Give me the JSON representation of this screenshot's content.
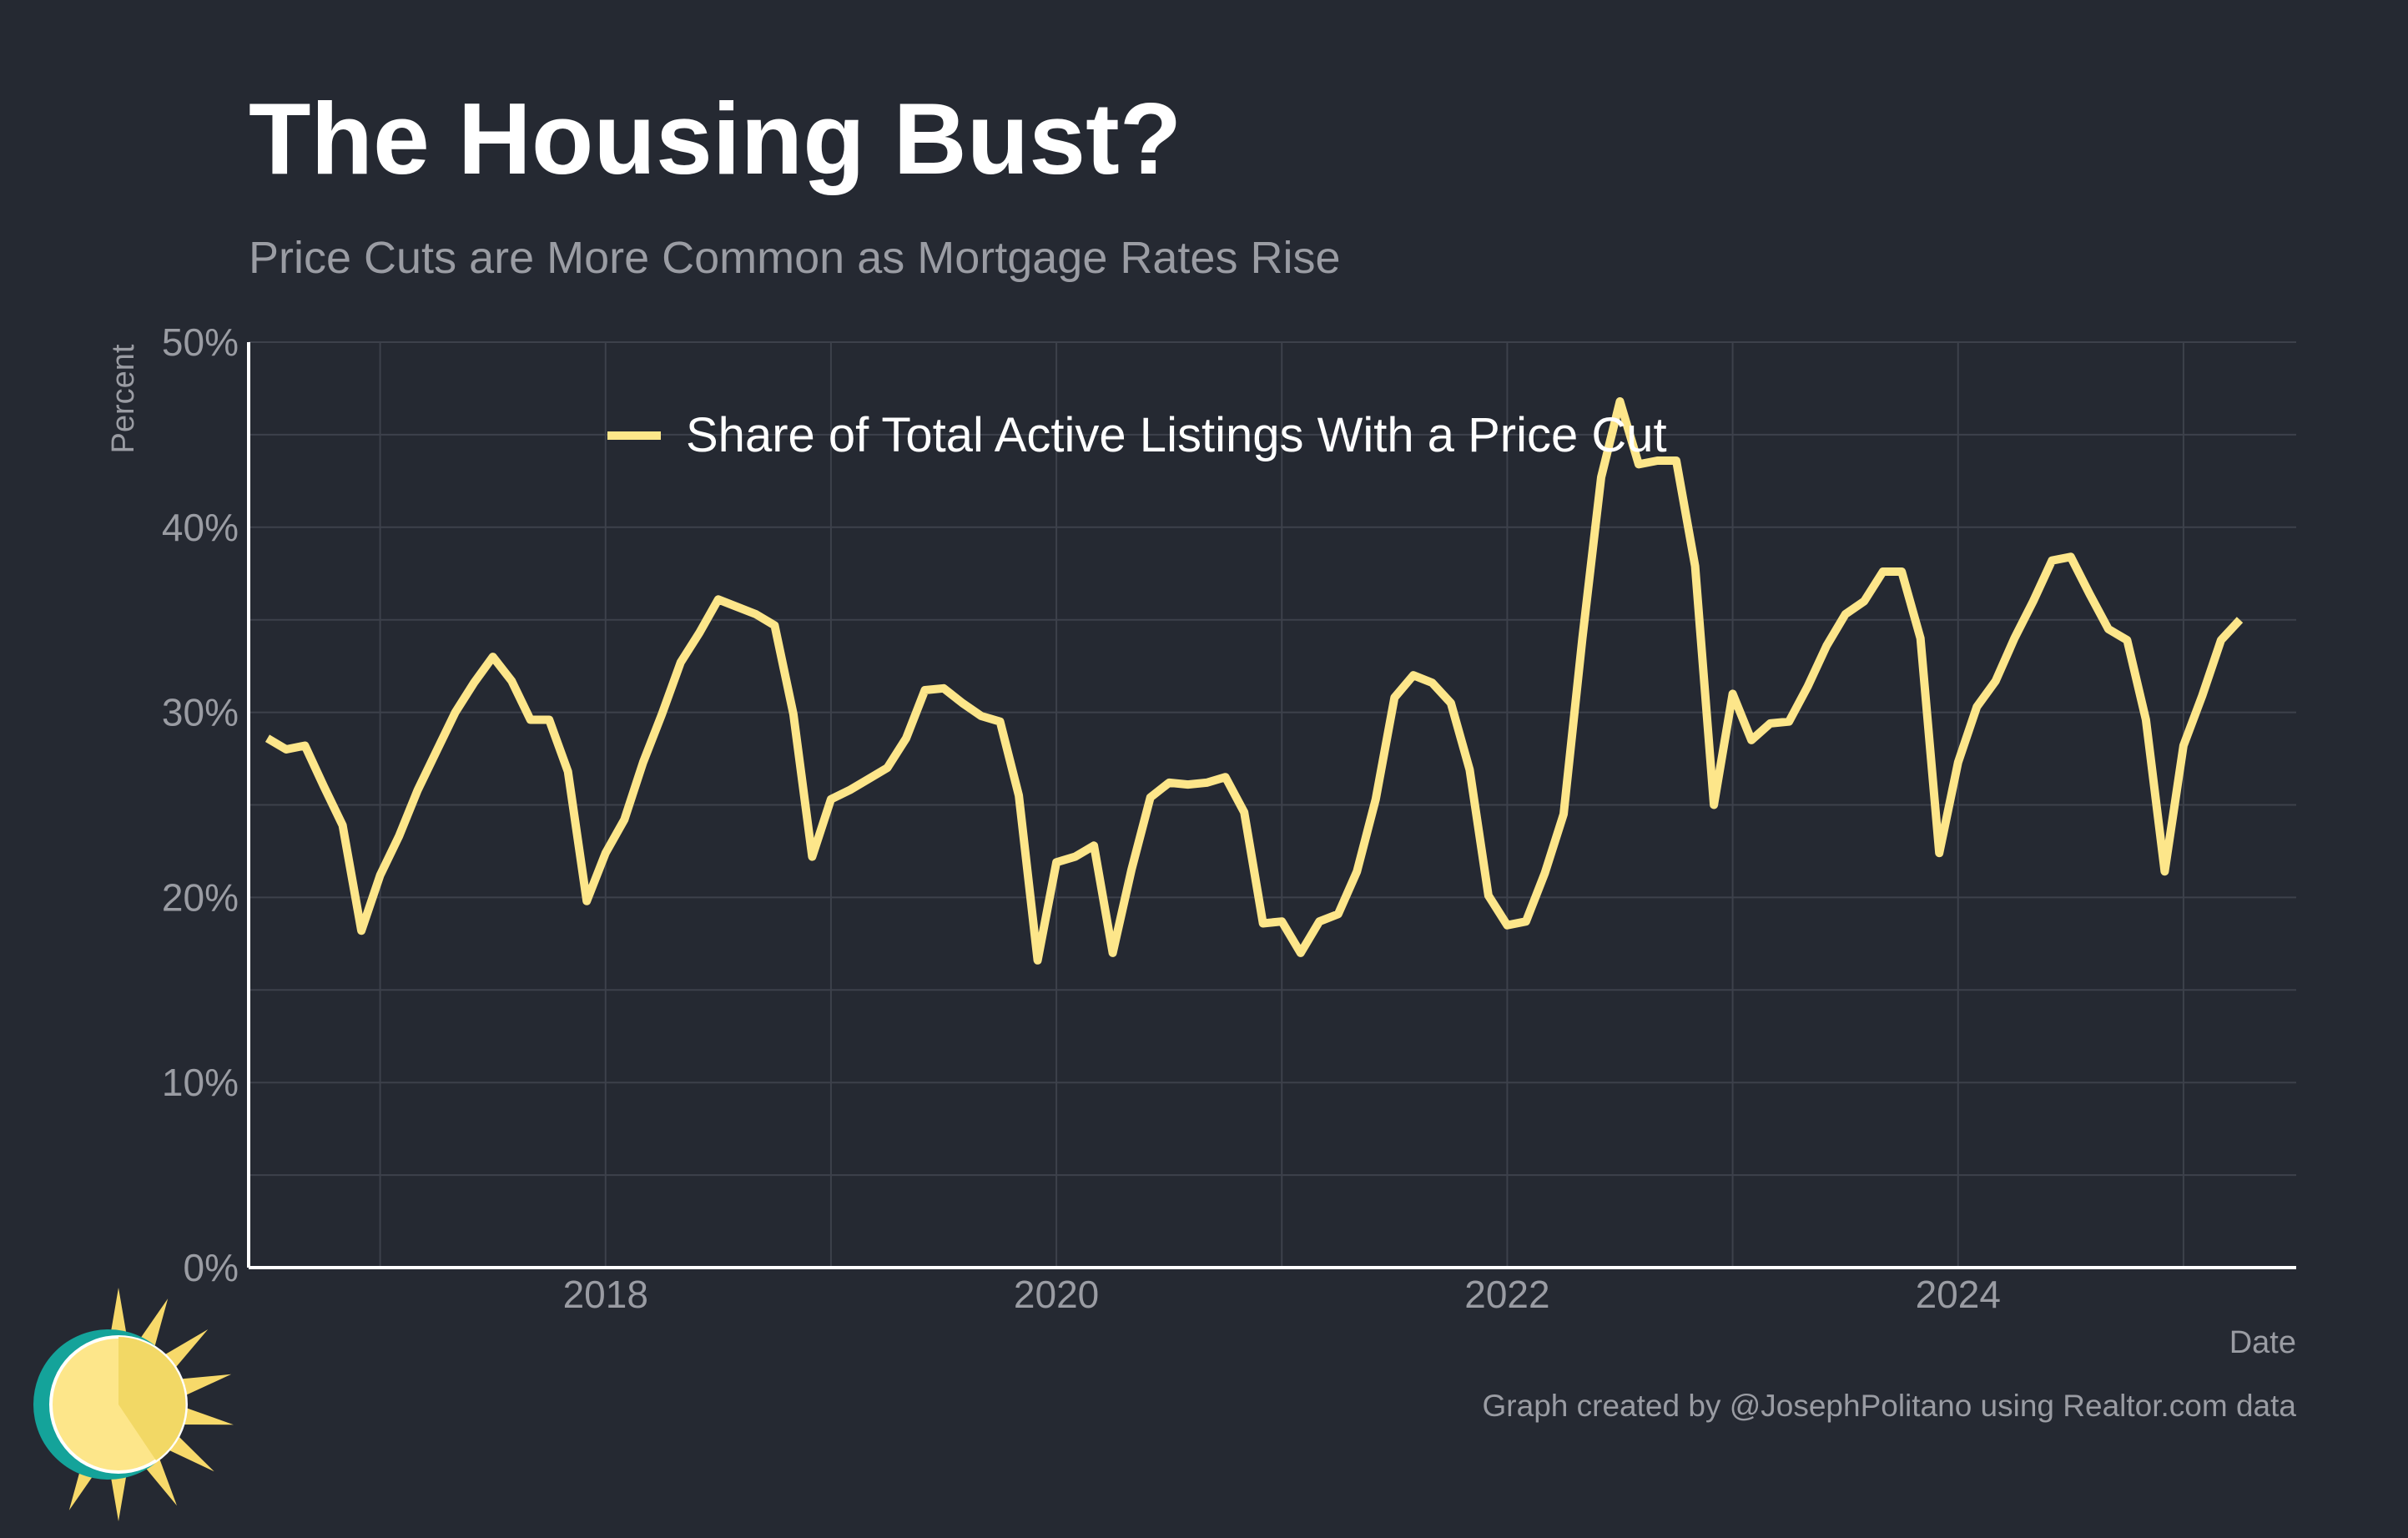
{
  "title": "The Housing Bust?",
  "subtitle": "Price Cuts are More Common as Mortgage Rates Rise",
  "caption": "Graph created by @JosephPolitano using Realtor.com data",
  "colors": {
    "background": "#252932",
    "line": "#fde68a",
    "grid": "#3d414b",
    "axis": "#ffffff",
    "text_muted": "#9a9ca3",
    "logo_teal": "#14a39a",
    "logo_sun": "#f7d96a"
  },
  "chart_data": {
    "type": "line",
    "title": "The Housing Bust?",
    "subtitle": "Price Cuts are More Common as Mortgage Rates Rise",
    "xlabel": "Date",
    "ylabel": "Percent",
    "xlim": [
      "2016-06",
      "2025-07"
    ],
    "ylim": [
      0,
      50
    ],
    "x_ticks": [
      "2018",
      "2020",
      "2022",
      "2024"
    ],
    "y_ticks": [
      "0%",
      "10%",
      "20%",
      "30%",
      "40%",
      "50%"
    ],
    "grid": true,
    "legend_position": "top-left",
    "series": [
      {
        "name": "Share of Total Active Listings With a Price Cut",
        "color": "#fde68a",
        "x": [
          "2016-07",
          "2016-08",
          "2016-09",
          "2016-10",
          "2016-11",
          "2016-12",
          "2017-01",
          "2017-02",
          "2017-03",
          "2017-04",
          "2017-05",
          "2017-06",
          "2017-07",
          "2017-08",
          "2017-09",
          "2017-10",
          "2017-11",
          "2017-12",
          "2018-01",
          "2018-02",
          "2018-03",
          "2018-04",
          "2018-05",
          "2018-06",
          "2018-07",
          "2018-08",
          "2018-09",
          "2018-10",
          "2018-11",
          "2018-12",
          "2019-01",
          "2019-02",
          "2019-03",
          "2019-04",
          "2019-05",
          "2019-06",
          "2019-07",
          "2019-08",
          "2019-09",
          "2019-10",
          "2019-11",
          "2019-12",
          "2020-01",
          "2020-02",
          "2020-03",
          "2020-04",
          "2020-05",
          "2020-06",
          "2020-07",
          "2020-08",
          "2020-09",
          "2020-10",
          "2020-11",
          "2020-12",
          "2021-01",
          "2021-02",
          "2021-03",
          "2021-04",
          "2021-05",
          "2021-06",
          "2021-07",
          "2021-08",
          "2021-09",
          "2021-10",
          "2021-11",
          "2021-12",
          "2022-01",
          "2022-02",
          "2022-03",
          "2022-04",
          "2022-05",
          "2022-06",
          "2022-07",
          "2022-08",
          "2022-09",
          "2022-10",
          "2022-11",
          "2022-12",
          "2023-01",
          "2023-02",
          "2023-03",
          "2023-04",
          "2023-05",
          "2023-06",
          "2023-07",
          "2023-08",
          "2023-09",
          "2023-10",
          "2023-11",
          "2023-12",
          "2024-01",
          "2024-02",
          "2024-03",
          "2024-04",
          "2024-05",
          "2024-06",
          "2024-07",
          "2024-08",
          "2024-09",
          "2024-10",
          "2024-11",
          "2024-12",
          "2025-01",
          "2025-02",
          "2025-03",
          "2025-04"
        ],
        "values": [
          28.6,
          28.0,
          28.2,
          26.0,
          23.9,
          18.2,
          21.2,
          23.3,
          25.8,
          27.9,
          30.0,
          31.6,
          33.0,
          31.7,
          29.6,
          29.6,
          26.8,
          19.8,
          22.4,
          24.2,
          27.3,
          29.9,
          32.7,
          34.3,
          36.1,
          35.7,
          35.3,
          34.7,
          29.9,
          22.2,
          25.3,
          25.8,
          26.4,
          27.0,
          28.6,
          31.2,
          31.3,
          30.5,
          29.8,
          29.5,
          25.5,
          16.6,
          21.9,
          22.2,
          22.8,
          17.0,
          21.5,
          25.4,
          26.2,
          26.1,
          26.2,
          26.5,
          24.6,
          18.6,
          18.7,
          17.0,
          18.7,
          19.1,
          21.4,
          25.3,
          30.8,
          32.0,
          31.6,
          30.5,
          26.9,
          20.1,
          18.5,
          18.7,
          21.3,
          24.5,
          34.0,
          42.7,
          46.8,
          43.4,
          43.6,
          43.6,
          37.9,
          25.0,
          31.0,
          28.5,
          29.4,
          29.5,
          31.4,
          33.6,
          35.3,
          36.0,
          37.6,
          37.6,
          34.0,
          22.4,
          27.3,
          30.3,
          31.7,
          34.0,
          36.0,
          38.2,
          38.4,
          36.4,
          34.5,
          33.9,
          29.6,
          21.4,
          28.2,
          30.9,
          33.9,
          35.0
        ]
      }
    ]
  }
}
